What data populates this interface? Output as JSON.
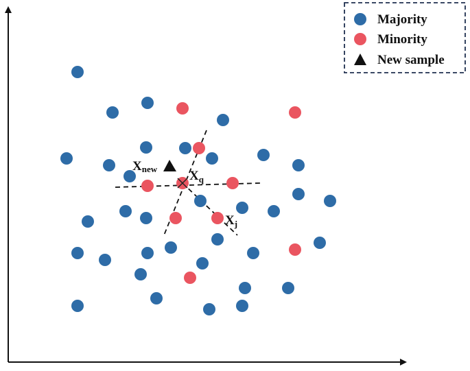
{
  "legend": {
    "majority_label": "Majority",
    "minority_label": "Minority",
    "new_sample_label": "New sample"
  },
  "labels": {
    "xnew_main": "X",
    "xnew_sub": "new",
    "xq_main": "X",
    "xq_sub": "q",
    "xj_main": "X",
    "xj_sub": "j"
  },
  "colors": {
    "majority": "#2e6ca7",
    "minority": "#ea5560",
    "new_sample": "#111111",
    "axes": "#111111",
    "legend_border": "#1f2f4f"
  },
  "icons": {
    "majority": "blue-circle-icon",
    "minority": "red-circle-icon",
    "new_sample": "black-triangle-icon"
  }
}
